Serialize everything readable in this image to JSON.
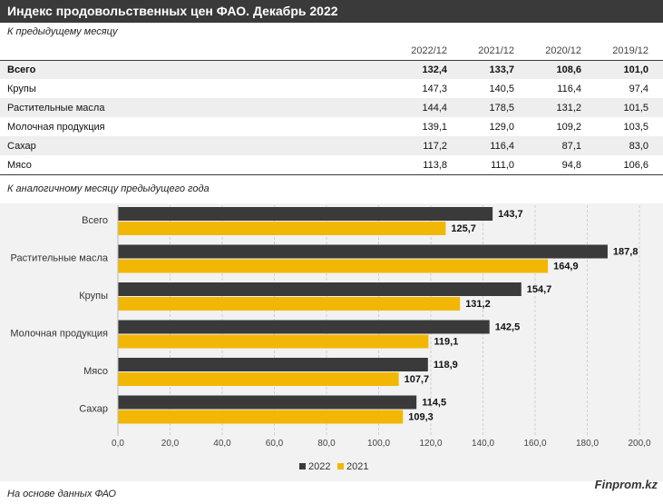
{
  "title": "Индекс продовольственных цен ФАО. Декабрь 2022",
  "table_section": {
    "subtitle": "К предыдущему месяцу",
    "columns": [
      "2022/12",
      "2021/12",
      "2020/12",
      "2019/12"
    ],
    "rows": [
      {
        "name": "Всего",
        "values": [
          "132,4",
          "133,7",
          "108,6",
          "101,0"
        ]
      },
      {
        "name": "Крупы",
        "values": [
          "147,3",
          "140,5",
          "116,4",
          "97,4"
        ]
      },
      {
        "name": "Растительные масла",
        "values": [
          "144,4",
          "178,5",
          "131,2",
          "101,5"
        ]
      },
      {
        "name": "Молочная продукция",
        "values": [
          "139,1",
          "129,0",
          "109,2",
          "103,5"
        ]
      },
      {
        "name": "Сахар",
        "values": [
          "117,2",
          "116,4",
          "87,1",
          "83,0"
        ]
      },
      {
        "name": "Мясо",
        "values": [
          "113,8",
          "111,0",
          "94,8",
          "106,6"
        ]
      }
    ]
  },
  "chart_section": {
    "subtitle": "К аналогичному месяцу предыдущего года"
  },
  "chart_data": {
    "type": "bar",
    "orientation": "horizontal",
    "categories": [
      "Всего",
      "Растительные масла",
      "Крупы",
      "Молочная продукция",
      "Мясо",
      "Сахар"
    ],
    "series": [
      {
        "name": "2022",
        "values": [
          143.7,
          187.8,
          154.7,
          142.5,
          118.9,
          114.5
        ],
        "labels": [
          "143,7",
          "187,8",
          "154,7",
          "142,5",
          "118,9",
          "114,5"
        ],
        "color": "#3a3a3a"
      },
      {
        "name": "2021",
        "values": [
          125.7,
          164.9,
          131.2,
          119.1,
          107.7,
          109.3
        ],
        "labels": [
          "125,7",
          "164,9",
          "131,2",
          "119,1",
          "107,7",
          "109,3"
        ],
        "color": "#f2b705"
      }
    ],
    "xlim": [
      0,
      200
    ],
    "ticks": [
      "0,0",
      "20,0",
      "40,0",
      "60,0",
      "80,0",
      "100,0",
      "120,0",
      "140,0",
      "160,0",
      "180,0",
      "200,0"
    ],
    "grid": true,
    "legend_position": "bottom"
  },
  "footer": {
    "source": "На основе данных ФАО",
    "brand": "Finprom.kz"
  }
}
